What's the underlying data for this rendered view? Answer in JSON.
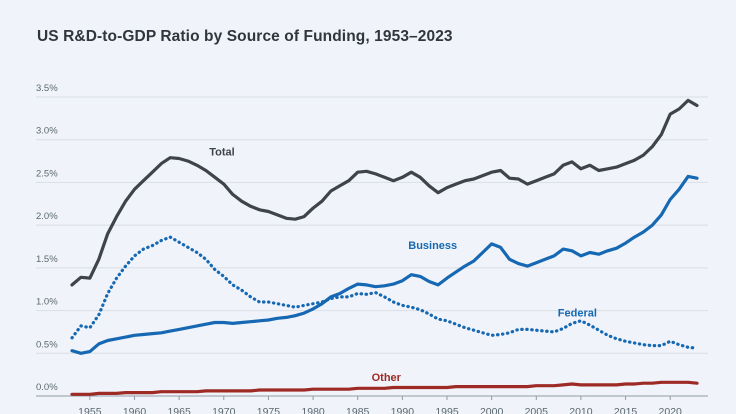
{
  "page": {
    "background": "#f0f4fa"
  },
  "chart": {
    "title": "US R&D-to-GDP Ratio by Source of Funding, 1953–2023"
  },
  "chart_data": {
    "type": "line",
    "title": "US R&D-to-GDP Ratio by Source of Funding, 1953–2023",
    "xlabel": "",
    "ylabel": "",
    "x_start": 1953,
    "x_end": 2023,
    "ylim": [
      0,
      3.5
    ],
    "grid": true,
    "legend": "inline-labels",
    "y_tick_labels": [
      "0.0%",
      "0.5%",
      "1.0%",
      "1.5%",
      "2.0%",
      "2.5%",
      "3.0%",
      "3.5%"
    ],
    "x_ticks": [
      1955,
      1960,
      1965,
      1970,
      1975,
      1980,
      1985,
      1990,
      1995,
      2000,
      2005,
      2010,
      2015,
      2020
    ],
    "x_tick_labels": [
      "1955",
      "1960",
      "1965",
      "1970",
      "1975",
      "1980",
      "1985",
      "1990",
      "1995",
      "2000",
      "2005",
      "2010",
      "2015",
      "2020"
    ],
    "colors": {
      "total": "#3f4448",
      "business": "#1668b3",
      "federal": "#1668b3",
      "other": "#9e2a25",
      "gridline": "#d9dee4",
      "axis": "#8f9aa4",
      "tick_label": "#5b6770",
      "background": "#f0f4fa"
    },
    "series": [
      {
        "name": "Total",
        "style": "solid",
        "color": "#3f4448",
        "values": [
          1.3,
          1.39,
          1.38,
          1.6,
          1.9,
          2.1,
          2.28,
          2.42,
          2.52,
          2.62,
          2.72,
          2.79,
          2.78,
          2.75,
          2.7,
          2.64,
          2.56,
          2.48,
          2.36,
          2.28,
          2.22,
          2.18,
          2.16,
          2.12,
          2.08,
          2.07,
          2.1,
          2.2,
          2.28,
          2.4,
          2.46,
          2.52,
          2.62,
          2.63,
          2.6,
          2.56,
          2.52,
          2.56,
          2.62,
          2.56,
          2.46,
          2.38,
          2.44,
          2.48,
          2.52,
          2.54,
          2.58,
          2.62,
          2.64,
          2.55,
          2.54,
          2.48,
          2.52,
          2.56,
          2.6,
          2.7,
          2.74,
          2.66,
          2.7,
          2.64,
          2.66,
          2.68,
          2.72,
          2.76,
          2.82,
          2.92,
          3.06,
          3.3,
          3.36,
          3.46,
          3.4
        ]
      },
      {
        "name": "Business",
        "style": "solid",
        "color": "#1668b3",
        "values": [
          0.53,
          0.5,
          0.52,
          0.61,
          0.65,
          0.67,
          0.69,
          0.71,
          0.72,
          0.73,
          0.74,
          0.76,
          0.78,
          0.8,
          0.82,
          0.84,
          0.86,
          0.86,
          0.85,
          0.86,
          0.87,
          0.88,
          0.89,
          0.91,
          0.92,
          0.94,
          0.97,
          1.02,
          1.08,
          1.16,
          1.2,
          1.26,
          1.31,
          1.3,
          1.28,
          1.29,
          1.31,
          1.35,
          1.42,
          1.4,
          1.34,
          1.3,
          1.38,
          1.45,
          1.52,
          1.58,
          1.68,
          1.78,
          1.74,
          1.6,
          1.55,
          1.52,
          1.56,
          1.6,
          1.64,
          1.72,
          1.7,
          1.64,
          1.68,
          1.66,
          1.7,
          1.73,
          1.79,
          1.86,
          1.92,
          2.0,
          2.12,
          2.3,
          2.42,
          2.57,
          2.55
        ]
      },
      {
        "name": "Federal",
        "style": "dotted",
        "color": "#1668b3",
        "values": [
          0.68,
          0.82,
          0.8,
          0.95,
          1.2,
          1.38,
          1.52,
          1.64,
          1.72,
          1.76,
          1.82,
          1.86,
          1.8,
          1.74,
          1.68,
          1.6,
          1.48,
          1.4,
          1.3,
          1.24,
          1.16,
          1.1,
          1.1,
          1.08,
          1.06,
          1.04,
          1.06,
          1.08,
          1.1,
          1.14,
          1.16,
          1.16,
          1.2,
          1.19,
          1.21,
          1.16,
          1.1,
          1.06,
          1.04,
          1.01,
          0.96,
          0.9,
          0.88,
          0.84,
          0.8,
          0.77,
          0.74,
          0.71,
          0.72,
          0.74,
          0.78,
          0.78,
          0.77,
          0.76,
          0.75,
          0.79,
          0.85,
          0.88,
          0.83,
          0.77,
          0.71,
          0.67,
          0.64,
          0.62,
          0.6,
          0.59,
          0.59,
          0.64,
          0.6,
          0.57,
          0.56
        ]
      },
      {
        "name": "Other",
        "style": "solid",
        "color": "#9e2a25",
        "values": [
          0.02,
          0.02,
          0.02,
          0.03,
          0.03,
          0.03,
          0.04,
          0.04,
          0.04,
          0.04,
          0.05,
          0.05,
          0.05,
          0.05,
          0.05,
          0.06,
          0.06,
          0.06,
          0.06,
          0.06,
          0.06,
          0.07,
          0.07,
          0.07,
          0.07,
          0.07,
          0.07,
          0.08,
          0.08,
          0.08,
          0.08,
          0.08,
          0.09,
          0.09,
          0.09,
          0.09,
          0.1,
          0.1,
          0.1,
          0.1,
          0.1,
          0.1,
          0.1,
          0.11,
          0.11,
          0.11,
          0.11,
          0.11,
          0.11,
          0.11,
          0.11,
          0.11,
          0.12,
          0.12,
          0.12,
          0.13,
          0.14,
          0.13,
          0.13,
          0.13,
          0.13,
          0.13,
          0.14,
          0.14,
          0.15,
          0.15,
          0.16,
          0.16,
          0.16,
          0.16,
          0.15
        ]
      }
    ],
    "series_labels": [
      {
        "text": "Total",
        "year": 1969.8,
        "value": 2.86,
        "color": "#3f4448"
      },
      {
        "text": "Business",
        "year": 1993.4,
        "value": 1.77,
        "color": "#1668b3"
      },
      {
        "text": "Federal",
        "year": 2009.6,
        "value": 0.98,
        "color": "#1668b3"
      },
      {
        "text": "Other",
        "year": 1988.2,
        "value": 0.22,
        "color": "#9e2a25"
      }
    ]
  }
}
